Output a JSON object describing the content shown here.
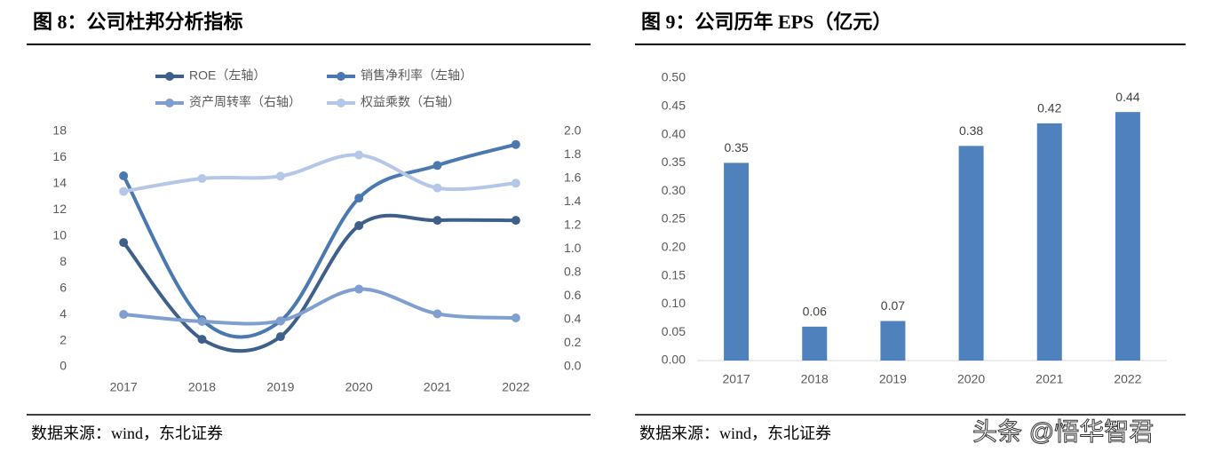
{
  "chart_data": [
    {
      "type": "line",
      "title": "图 8：公司杜邦分析指标",
      "source": "数据来源：wind，东北证券",
      "categories": [
        "2017",
        "2018",
        "2019",
        "2020",
        "2021",
        "2022"
      ],
      "series": [
        {
          "name": "ROE（左轴）",
          "color": "#3e5f8a",
          "values": [
            9.5,
            2.1,
            2.3,
            10.8,
            11.2,
            11.2
          ]
        },
        {
          "name": "销售净利率（左轴）",
          "color": "#4a78b0",
          "values": [
            14.6,
            3.6,
            3.5,
            12.9,
            15.4,
            17.0
          ]
        },
        {
          "name": "资产周转率（右轴）",
          "color": "#7f9fcf",
          "axis": "y2",
          "values": [
            0.445,
            0.385,
            0.39,
            0.66,
            0.45,
            0.415
          ]
        },
        {
          "name": "权益乘数（右轴）",
          "color": "#b4c7e7",
          "axis": "y2",
          "values": [
            1.49,
            1.6,
            1.62,
            1.8,
            1.52,
            1.56
          ]
        }
      ],
      "ylim": [
        0,
        18
      ],
      "yticks": [
        0,
        2,
        4,
        6,
        8,
        10,
        12,
        14,
        16,
        18
      ],
      "y2lim": [
        0,
        2
      ],
      "y2ticks": [
        {
          "value": 0,
          "label": "0.0"
        },
        0.2,
        0.4,
        0.6,
        0.8,
        {
          "value": 1,
          "label": "1.0"
        },
        1.2,
        1.4,
        1.6,
        1.8,
        {
          "value": 2,
          "label": "2.0"
        }
      ],
      "grid": false,
      "legend": "top"
    },
    {
      "type": "bar",
      "title": "图 9：公司历年 EPS（亿元）",
      "source": "数据来源：wind，东北证券",
      "categories": [
        "2017",
        "2018",
        "2019",
        "2020",
        "2021",
        "2022"
      ],
      "values": [
        0.35,
        0.06,
        0.07,
        0.38,
        0.42,
        0.44
      ],
      "color": "#4f81bd",
      "ylim": [
        0,
        0.5
      ],
      "yticks": [
        {
          "value": 0,
          "label": "0.00"
        },
        0.05,
        {
          "value": 0.1,
          "label": "0.10"
        },
        0.15,
        {
          "value": 0.2,
          "label": "0.20"
        },
        0.25,
        {
          "value": 0.3,
          "label": "0.30"
        },
        0.35,
        {
          "value": 0.4,
          "label": "0.40"
        },
        0.45,
        {
          "value": 0.5,
          "label": "0.50"
        }
      ],
      "grid": false
    }
  ],
  "watermark": "头条 @悟华智君"
}
